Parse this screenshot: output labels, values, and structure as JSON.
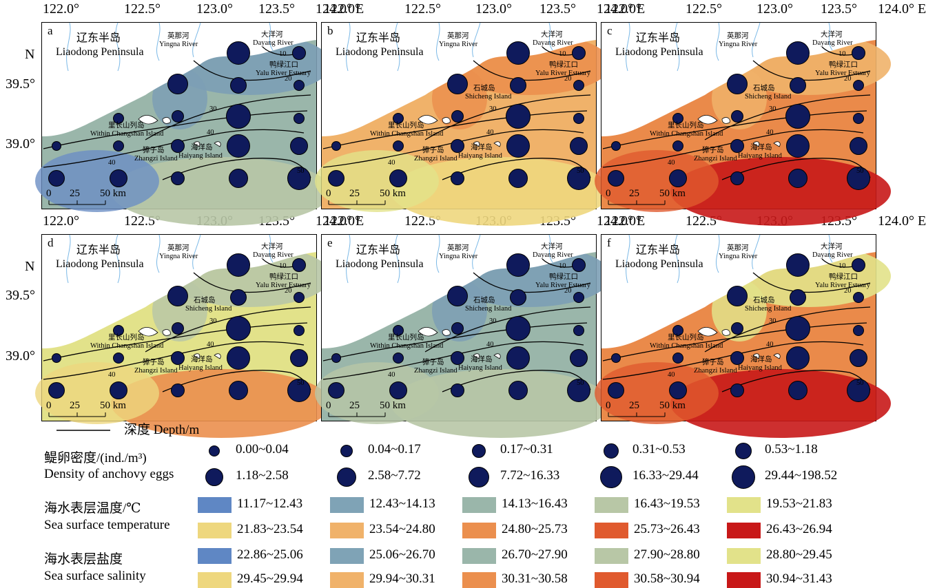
{
  "axes": {
    "lon_labels": [
      "122.0°",
      "122.5°",
      "123.0°",
      "123.5°",
      "124.0° E"
    ],
    "lat_labels": [
      "N",
      "39.5°",
      "39.0°"
    ]
  },
  "panels": [
    {
      "label": "a",
      "fill": "#9ab6aa",
      "zones": [
        "#7c9fb5",
        "#6b8ec4",
        "#b8c7a6"
      ],
      "cn_labels": true,
      "sm_extra": false
    },
    {
      "label": "b",
      "fill": "#f0b26a",
      "zones": [
        "#eb8f4e",
        "#e2e28a",
        "#eed77e"
      ],
      "cn_labels": true,
      "sm_extra": true
    },
    {
      "label": "c",
      "fill": "#ea8a4a",
      "zones": [
        "#f0b26a",
        "#e05a2e",
        "#c81818"
      ],
      "cn_labels": true,
      "sm_extra": true
    },
    {
      "label": "d",
      "fill": "#e2e28a",
      "zones": [
        "#b8c7a6",
        "#eed77e",
        "#eb8f4e"
      ],
      "cn_labels": true,
      "sm_extra": true
    },
    {
      "label": "e",
      "fill": "#9ab6aa",
      "zones": [
        "#7c9fb5",
        "#b8c7a6",
        "#b8c7a6"
      ],
      "cn_labels": true,
      "sm_extra": true
    },
    {
      "label": "f",
      "fill": "#ea8a4a",
      "zones": [
        "#e2e28a",
        "#e05a2e",
        "#c81818"
      ],
      "cn_labels": true,
      "sm_extra": true
    }
  ],
  "map_text": {
    "peninsula_cn": "辽东半岛",
    "peninsula_en": "Liaodong Peninsula",
    "yingna_cn": "英那河",
    "yingna_en": "Yingna River",
    "dayang_cn": "大洋河",
    "dayang_en": "Dayang River",
    "yalu_cn": "鸭绿江口",
    "yalu_en": "Yalu River Estuary",
    "shicheng_cn": "石城岛",
    "shicheng_en": "Shicheng Island",
    "changshan_cn": "里长山列岛",
    "changshan_en": "Within Changshan Island",
    "zhangzi_cn": "獐子岛",
    "zhangzi_en": "Zhangzi Island",
    "haiyang_cn": "海洋岛",
    "haiyang_en": "Haiyang Island",
    "scale_0": "0",
    "scale_25": "25",
    "scale_50": "50 km",
    "contours": [
      "10",
      "20",
      "30",
      "40",
      "50",
      "40"
    ]
  },
  "legend": {
    "depth_label": "深度 Depth/m",
    "density_cn": "鳀卵密度/(ind./m³)",
    "density_en": "Density of anchovy eggs",
    "density_classes": [
      "0.00~0.04",
      "0.04~0.17",
      "0.17~0.31",
      "0.31~0.53",
      "0.53~1.18",
      "1.18~2.58",
      "2.58~7.72",
      "7.72~16.33",
      "16.33~29.44",
      "29.44~198.52"
    ],
    "temp_cn": "海水表层温度/℃",
    "temp_en": "Sea surface temperature",
    "temp_classes": [
      "11.17~12.43",
      "12.43~14.13",
      "14.13~16.43",
      "16.43~19.53",
      "19.53~21.83",
      "21.83~23.54",
      "23.54~24.80",
      "24.80~25.73",
      "25.73~26.43",
      "26.43~26.94"
    ],
    "sal_cn": "海水表层盐度",
    "sal_en": "Sea surface salinity",
    "sal_classes": [
      "22.86~25.06",
      "25.06~26.70",
      "26.70~27.90",
      "27.90~28.80",
      "28.80~29.45",
      "29.45~29.94",
      "29.94~30.31",
      "30.31~30.58",
      "30.58~30.94",
      "30.94~31.43"
    ],
    "class_colors": [
      "#5f87c4",
      "#7fa3b6",
      "#9ab6aa",
      "#b8c7a6",
      "#e2e28a",
      "#eed77e",
      "#f0b26a",
      "#eb8f4e",
      "#e05a2e",
      "#c81818"
    ]
  }
}
